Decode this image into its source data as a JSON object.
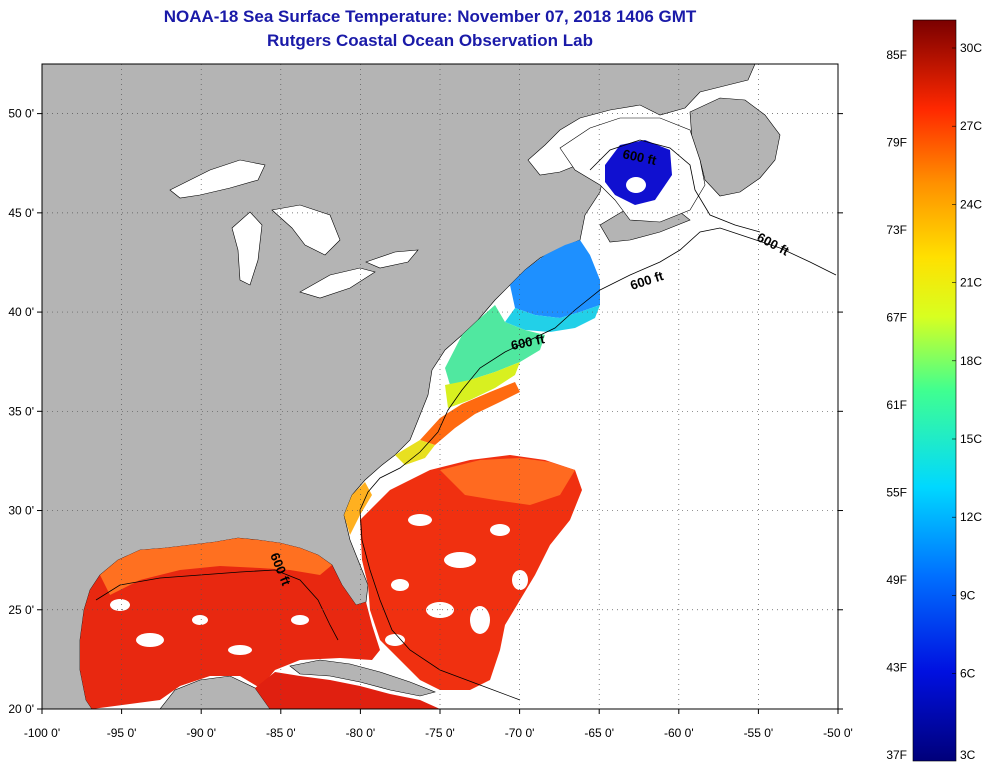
{
  "title": "NOAA-18 Sea Surface Temperature:  November 07, 2018 1406 GMT",
  "subtitle": "Rutgers Coastal Ocean Observation Lab",
  "map": {
    "lon_range": [
      -100,
      -50
    ],
    "lat_range": [
      20,
      52.5
    ],
    "lon_ticks": [
      "-100 0'",
      "-95 0'",
      "-90 0'",
      "-85 0'",
      "-80 0'",
      "-75 0'",
      "-70 0'",
      "-65 0'",
      "-60 0'",
      "-55 0'",
      "-50 0'"
    ],
    "lat_ticks": [
      "20 0'",
      "25 0'",
      "30 0'",
      "35 0'",
      "40 0'",
      "45 0'",
      "50 0'"
    ],
    "grid": true,
    "land_color": "#b4b4b4",
    "no_data_color": "#ffffff",
    "contour_label": "600 ft"
  },
  "colorbar": {
    "fahrenheit_labels": [
      "85F",
      "79F",
      "73F",
      "67F",
      "61F",
      "55F",
      "49F",
      "43F",
      "37F"
    ],
    "celsius_labels": [
      "30C",
      "27C",
      "24C",
      "21C",
      "18C",
      "15C",
      "12C",
      "9C",
      "6C",
      "3C"
    ],
    "range_c": [
      3,
      31
    ]
  }
}
